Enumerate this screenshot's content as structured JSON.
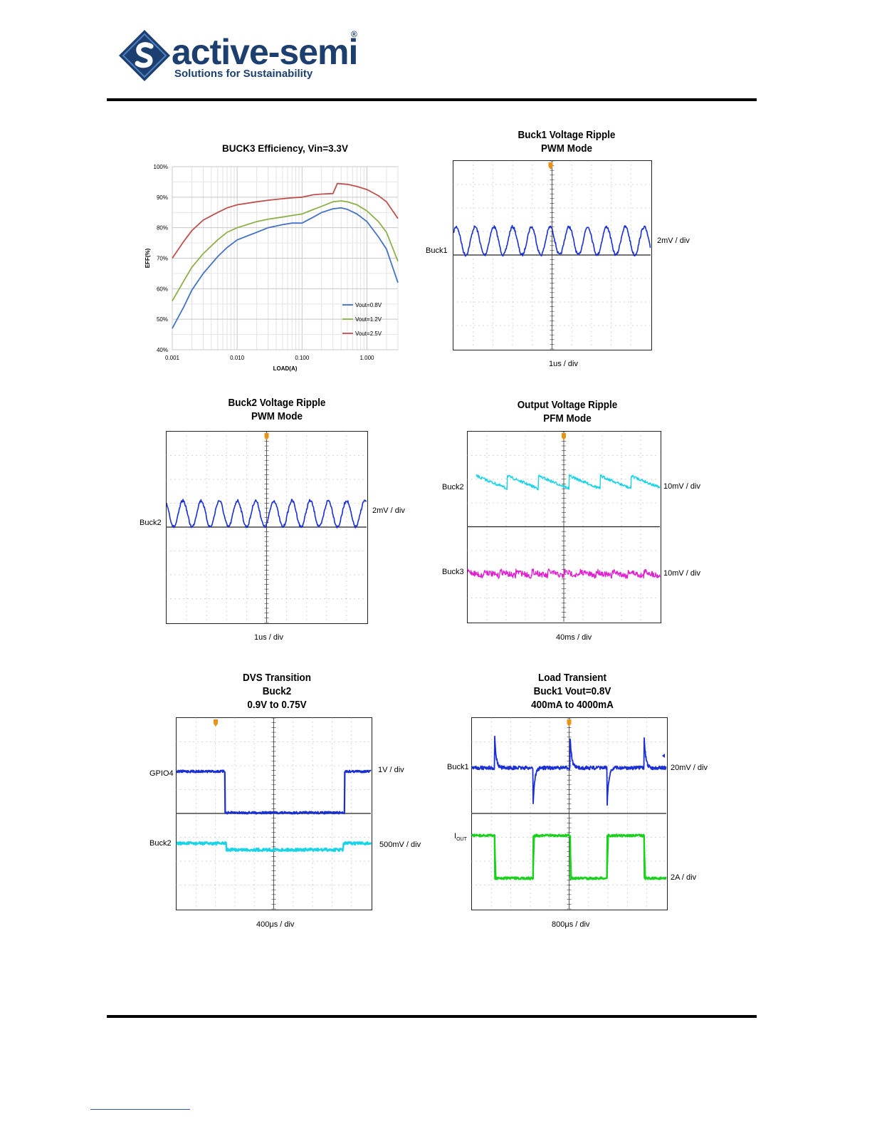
{
  "logo": {
    "name": "active-semi",
    "registered": "®",
    "tagline": "Solutions for Sustainability"
  },
  "colors": {
    "blue": "#1a2fd4",
    "cyan": "#19d3e6",
    "magenta": "#e020d0",
    "green": "#17d21a",
    "eff_08": "#4472c4",
    "eff_12": "#8db04a",
    "eff_25": "#c0504d",
    "marker": "#e69318"
  },
  "chart_data": [
    {
      "type": "line",
      "title": "BUCK3 Efficiency, Vin=3.3V",
      "xlabel": "LOAD(A)",
      "ylabel": "EFF(%)",
      "xscale": "log",
      "xlim": [
        0.001,
        3
      ],
      "ylim": [
        40,
        100
      ],
      "xticks": [
        "0.001",
        "0.010",
        "0.100",
        "1.000"
      ],
      "yticks": [
        "40%",
        "50%",
        "60%",
        "70%",
        "80%",
        "90%",
        "100%"
      ],
      "legend": "bottom-right",
      "grid": true,
      "series": [
        {
          "name": "Vout=0.8V",
          "x": [
            0.001,
            0.0015,
            0.002,
            0.003,
            0.005,
            0.007,
            0.01,
            0.02,
            0.03,
            0.05,
            0.07,
            0.1,
            0.15,
            0.2,
            0.3,
            0.4,
            0.5,
            0.7,
            1.0,
            1.5,
            2.0,
            3.0
          ],
          "y": [
            47,
            54,
            59.5,
            65,
            70.5,
            73.5,
            76,
            78.5,
            80,
            81,
            81.5,
            81.5,
            83.5,
            85,
            86.2,
            86.5,
            86,
            84.5,
            82,
            77,
            73,
            62
          ]
        },
        {
          "name": "Vout=1.2V",
          "x": [
            0.001,
            0.0015,
            0.002,
            0.003,
            0.005,
            0.007,
            0.01,
            0.02,
            0.03,
            0.05,
            0.07,
            0.1,
            0.15,
            0.2,
            0.3,
            0.4,
            0.5,
            0.7,
            1.0,
            1.5,
            2.0,
            3.0
          ],
          "y": [
            56,
            62.5,
            67,
            71.5,
            76,
            78.5,
            80,
            82,
            82.8,
            83.5,
            84,
            84.5,
            86,
            87,
            88.5,
            88.8,
            88.5,
            87.5,
            85.5,
            82,
            78.5,
            69
          ]
        },
        {
          "name": "Vout=2.5V",
          "x": [
            0.001,
            0.0015,
            0.002,
            0.003,
            0.005,
            0.007,
            0.01,
            0.02,
            0.03,
            0.05,
            0.07,
            0.1,
            0.15,
            0.2,
            0.3,
            0.35,
            0.5,
            0.7,
            1.0,
            1.5,
            2.0,
            3.0
          ],
          "y": [
            70,
            75.5,
            79,
            82.5,
            85,
            86.5,
            87.5,
            88.5,
            89,
            89.5,
            89.8,
            90,
            90.8,
            91,
            91.2,
            94.5,
            94.2,
            93.5,
            92.5,
            90.5,
            88.5,
            83
          ]
        }
      ]
    },
    {
      "type": "line",
      "title": "Buck1 Voltage Ripple",
      "subtitle": "PWM Mode",
      "xlabel": "1us  / div",
      "series": [
        {
          "name": "Buck1",
          "scale": "2mV / div",
          "shape": "sine",
          "cycles": 10.5,
          "amplitude_div": 0.6
        }
      ]
    },
    {
      "type": "line",
      "title": "Buck2 Voltage Ripple",
      "subtitle": "PWM Mode",
      "xlabel": "1us  / div",
      "series": [
        {
          "name": "Buck2",
          "scale": "2mV / div",
          "shape": "sine",
          "cycles": 11,
          "amplitude_div": 0.55
        }
      ]
    },
    {
      "type": "line",
      "title": "Output Voltage Ripple",
      "subtitle": "PFM Mode",
      "xlabel": "40ms  / div",
      "series": [
        {
          "name": "Buck2",
          "scale": "10mV / div",
          "shape": "sawtooth",
          "cycles": 6.2
        },
        {
          "name": "Buck3",
          "scale": "10mV / div",
          "shape": "noise-sawtooth",
          "cycles": 12
        }
      ]
    },
    {
      "type": "line",
      "title": "DVS Transition",
      "subtitle": "Buck2",
      "subtitle2": "0.9V to 0.75V",
      "xlabel": "400μs  / div",
      "series": [
        {
          "name": "GPIO4",
          "scale": "1V / div",
          "shape": "step",
          "high_div": [
            0,
            2.5,
            8.7,
            10
          ],
          "levels_div": [
            1.8,
            0
          ]
        },
        {
          "name": "Buck2",
          "scale": "500mV / div",
          "shape": "step",
          "levels_div": [
            -1.2,
            -1.5
          ]
        }
      ]
    },
    {
      "type": "line",
      "title": "Load Transient",
      "subtitle": "Buck1 Vout=0.8V",
      "subtitle2": "400mA to 4000mA",
      "xlabel": "800μs  / div",
      "series": [
        {
          "name": "Buck1",
          "scale": "20mV / div",
          "shape": "transient"
        },
        {
          "name": "I",
          "name_sub": "OUT",
          "scale": "2A / div",
          "shape": "square"
        }
      ]
    }
  ]
}
